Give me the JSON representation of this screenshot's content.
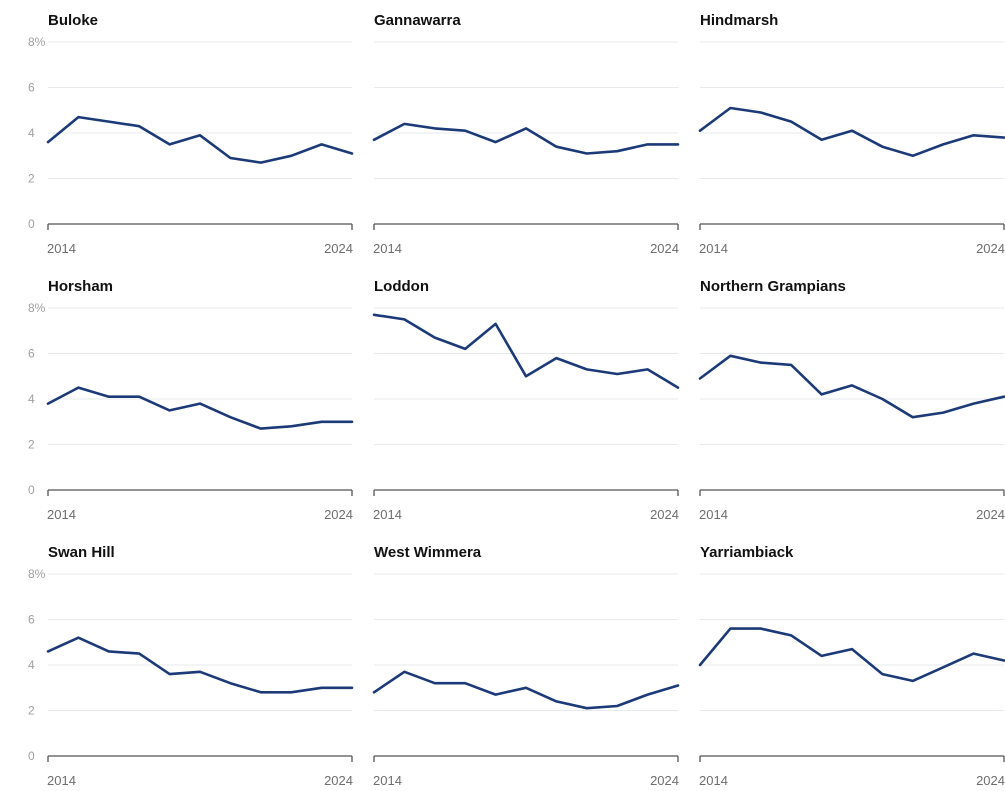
{
  "colors": {
    "line": "#1c3a78"
  },
  "chart_data": [
    {
      "type": "line",
      "title": "Buloke",
      "x": [
        2014,
        2015,
        2016,
        2017,
        2018,
        2019,
        2020,
        2021,
        2022,
        2023,
        2024
      ],
      "series": [
        {
          "values": [
            3.6,
            4.7,
            4.5,
            4.3,
            3.5,
            3.9,
            2.9,
            2.7,
            3.0,
            3.5,
            3.1
          ]
        }
      ],
      "ylim": [
        0,
        8
      ],
      "yticks": [
        "0",
        "2",
        "4",
        "6",
        "8%"
      ],
      "xtick_labels": [
        "2014",
        "2024"
      ],
      "grid": true
    },
    {
      "type": "line",
      "title": "Gannawarra",
      "x": [
        2014,
        2015,
        2016,
        2017,
        2018,
        2019,
        2020,
        2021,
        2022,
        2023,
        2024
      ],
      "series": [
        {
          "values": [
            3.7,
            4.4,
            4.2,
            4.1,
            3.6,
            4.2,
            3.4,
            3.1,
            3.2,
            3.5,
            3.5
          ]
        }
      ],
      "ylim": [
        0,
        8
      ],
      "yticks": [
        "",
        "",
        "",
        "",
        ""
      ],
      "xtick_labels": [
        "2014",
        "2024"
      ],
      "grid": true
    },
    {
      "type": "line",
      "title": "Hindmarsh",
      "x": [
        2014,
        2015,
        2016,
        2017,
        2018,
        2019,
        2020,
        2021,
        2022,
        2023,
        2024
      ],
      "series": [
        {
          "values": [
            4.1,
            5.1,
            4.9,
            4.5,
            3.7,
            4.1,
            3.4,
            3.0,
            3.5,
            3.9,
            3.8
          ]
        }
      ],
      "ylim": [
        0,
        8
      ],
      "yticks": [
        "",
        "",
        "",
        "",
        ""
      ],
      "xtick_labels": [
        "2014",
        "2024"
      ],
      "grid": true
    },
    {
      "type": "line",
      "title": "Horsham",
      "x": [
        2014,
        2015,
        2016,
        2017,
        2018,
        2019,
        2020,
        2021,
        2022,
        2023,
        2024
      ],
      "series": [
        {
          "values": [
            3.8,
            4.5,
            4.1,
            4.1,
            3.5,
            3.8,
            3.2,
            2.7,
            2.8,
            3.0,
            3.0
          ]
        }
      ],
      "ylim": [
        0,
        8
      ],
      "yticks": [
        "0",
        "2",
        "4",
        "6",
        "8%"
      ],
      "xtick_labels": [
        "2014",
        "2024"
      ],
      "grid": true
    },
    {
      "type": "line",
      "title": "Loddon",
      "x": [
        2014,
        2015,
        2016,
        2017,
        2018,
        2019,
        2020,
        2021,
        2022,
        2023,
        2024
      ],
      "series": [
        {
          "values": [
            7.7,
            7.5,
            6.7,
            6.2,
            7.3,
            5.0,
            5.8,
            5.3,
            5.1,
            5.3,
            4.5
          ]
        }
      ],
      "ylim": [
        0,
        8
      ],
      "yticks": [
        "",
        "",
        "",
        "",
        ""
      ],
      "xtick_labels": [
        "2014",
        "2024"
      ],
      "grid": true
    },
    {
      "type": "line",
      "title": "Northern Grampians",
      "x": [
        2014,
        2015,
        2016,
        2017,
        2018,
        2019,
        2020,
        2021,
        2022,
        2023,
        2024
      ],
      "series": [
        {
          "values": [
            4.9,
            5.9,
            5.6,
            5.5,
            4.2,
            4.6,
            4.0,
            3.2,
            3.4,
            3.8,
            4.1
          ]
        }
      ],
      "ylim": [
        0,
        8
      ],
      "yticks": [
        "",
        "",
        "",
        "",
        ""
      ],
      "xtick_labels": [
        "2014",
        "2024"
      ],
      "grid": true
    },
    {
      "type": "line",
      "title": "Swan Hill",
      "x": [
        2014,
        2015,
        2016,
        2017,
        2018,
        2019,
        2020,
        2021,
        2022,
        2023,
        2024
      ],
      "series": [
        {
          "values": [
            4.6,
            5.2,
            4.6,
            4.5,
            3.6,
            3.7,
            3.2,
            2.8,
            2.8,
            3.0,
            3.0
          ]
        }
      ],
      "ylim": [
        0,
        8
      ],
      "yticks": [
        "0",
        "2",
        "4",
        "6",
        "8%"
      ],
      "xtick_labels": [
        "2014",
        "2024"
      ],
      "grid": true
    },
    {
      "type": "line",
      "title": "West Wimmera",
      "x": [
        2014,
        2015,
        2016,
        2017,
        2018,
        2019,
        2020,
        2021,
        2022,
        2023,
        2024
      ],
      "series": [
        {
          "values": [
            2.8,
            3.7,
            3.2,
            3.2,
            2.7,
            3.0,
            2.4,
            2.1,
            2.2,
            2.7,
            3.1
          ]
        }
      ],
      "ylim": [
        0,
        8
      ],
      "yticks": [
        "",
        "",
        "",
        "",
        ""
      ],
      "xtick_labels": [
        "2014",
        "2024"
      ],
      "grid": true
    },
    {
      "type": "line",
      "title": "Yarriambiack",
      "x": [
        2014,
        2015,
        2016,
        2017,
        2018,
        2019,
        2020,
        2021,
        2022,
        2023,
        2024
      ],
      "series": [
        {
          "values": [
            4.0,
            5.6,
            5.6,
            5.3,
            4.4,
            4.7,
            3.6,
            3.3,
            3.9,
            4.5,
            4.2
          ]
        }
      ],
      "ylim": [
        0,
        8
      ],
      "yticks": [
        "",
        "",
        "",
        "",
        ""
      ],
      "xtick_labels": [
        "2014",
        "2024"
      ],
      "grid": true
    }
  ]
}
